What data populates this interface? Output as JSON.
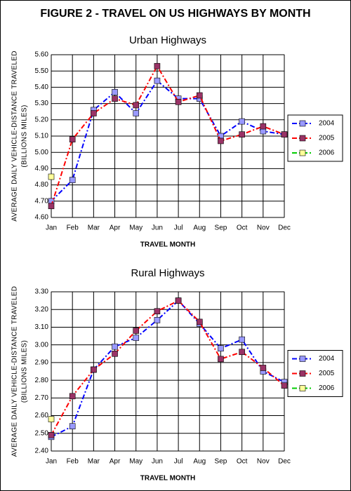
{
  "title": "FIGURE 2 - TRAVEL ON US HIGHWAYS BY MONTH",
  "chart_data": [
    {
      "type": "line",
      "subtitle": "Urban Highways",
      "xlabel": "TRAVEL MONTH",
      "ylabel": [
        "AVERAGE DAILY VEHICLE-DISTANCE TRAVELED",
        "(BILLIONS MILES)"
      ],
      "categories": [
        "Jan",
        "Feb",
        "Mar",
        "Apr",
        "May",
        "Jun",
        "Jul",
        "Aug",
        "Sep",
        "Oct",
        "Nov",
        "Dec"
      ],
      "series": [
        {
          "name": "2004",
          "color": "#0000ff",
          "marker_color": "#9999ff",
          "values": [
            4.7,
            4.83,
            5.26,
            5.37,
            5.24,
            5.44,
            5.33,
            5.33,
            5.1,
            5.19,
            5.13,
            5.11
          ]
        },
        {
          "name": "2005",
          "color": "#ff0000",
          "marker_color": "#993366",
          "values": [
            4.67,
            5.08,
            5.24,
            5.33,
            5.29,
            5.53,
            5.31,
            5.35,
            5.07,
            5.11,
            5.16,
            5.11
          ]
        },
        {
          "name": "2006",
          "color": "#00cc00",
          "marker_color": "#ffff99",
          "values": [
            4.85,
            null,
            null,
            null,
            null,
            null,
            null,
            null,
            null,
            null,
            null,
            null
          ]
        }
      ],
      "ylim": [
        4.6,
        5.6
      ],
      "yticks": [
        {
          "value": 4.6,
          "label": "4.60"
        },
        {
          "value": 4.7,
          "label": "4.70"
        },
        {
          "value": 4.8,
          "label": "4.80"
        },
        {
          "value": 4.9,
          "label": "4.90"
        },
        {
          "value": 5.0,
          "label": "5.00"
        },
        {
          "value": 5.1,
          "label": "5.10"
        },
        {
          "value": 5.2,
          "label": "5.20"
        },
        {
          "value": 5.3,
          "label": "5.30"
        },
        {
          "value": 5.4,
          "label": "5.40"
        },
        {
          "value": 5.5,
          "label": "5.50"
        },
        {
          "value": 5.6,
          "label": "5.60"
        }
      ],
      "grid": true,
      "legend": "right"
    },
    {
      "type": "line",
      "subtitle": "Rural Highways",
      "xlabel": "TRAVEL MONTH",
      "ylabel": [
        "AVERAGE DAILY VEHICLE-DISTANCE TRAVELED",
        "(BILLIONS MILES)"
      ],
      "categories": [
        "Jan",
        "Feb",
        "Mar",
        "Apr",
        "May",
        "Jun",
        "Jul",
        "Aug",
        "Sep",
        "Oct",
        "Nov",
        "Dec"
      ],
      "series": [
        {
          "name": "2004",
          "color": "#0000ff",
          "marker_color": "#9999ff",
          "values": [
            2.48,
            2.54,
            2.86,
            2.99,
            3.04,
            3.14,
            3.25,
            3.12,
            2.98,
            3.03,
            2.85,
            2.79
          ]
        },
        {
          "name": "2005",
          "color": "#ff0000",
          "marker_color": "#993366",
          "values": [
            2.49,
            2.71,
            2.86,
            2.95,
            3.08,
            3.19,
            3.25,
            3.13,
            2.92,
            2.96,
            2.87,
            2.77
          ]
        },
        {
          "name": "2006",
          "color": "#00cc00",
          "marker_color": "#ffff99",
          "values": [
            2.58,
            null,
            null,
            null,
            null,
            null,
            null,
            null,
            null,
            null,
            null,
            null
          ]
        }
      ],
      "ylim": [
        2.4,
        3.3
      ],
      "yticks": [
        {
          "value": 2.4,
          "label": "2.40"
        },
        {
          "value": 2.5,
          "label": "2.50"
        },
        {
          "value": 2.6,
          "label": "2.60"
        },
        {
          "value": 2.7,
          "label": "2.70"
        },
        {
          "value": 2.8,
          "label": "2.80"
        },
        {
          "value": 2.9,
          "label": "2.90"
        },
        {
          "value": 3.0,
          "label": "3.00"
        },
        {
          "value": 3.1,
          "label": "3.10"
        },
        {
          "value": 3.2,
          "label": "3.20"
        },
        {
          "value": 3.3,
          "label": "3.30"
        }
      ],
      "grid": true,
      "legend": "right"
    }
  ]
}
